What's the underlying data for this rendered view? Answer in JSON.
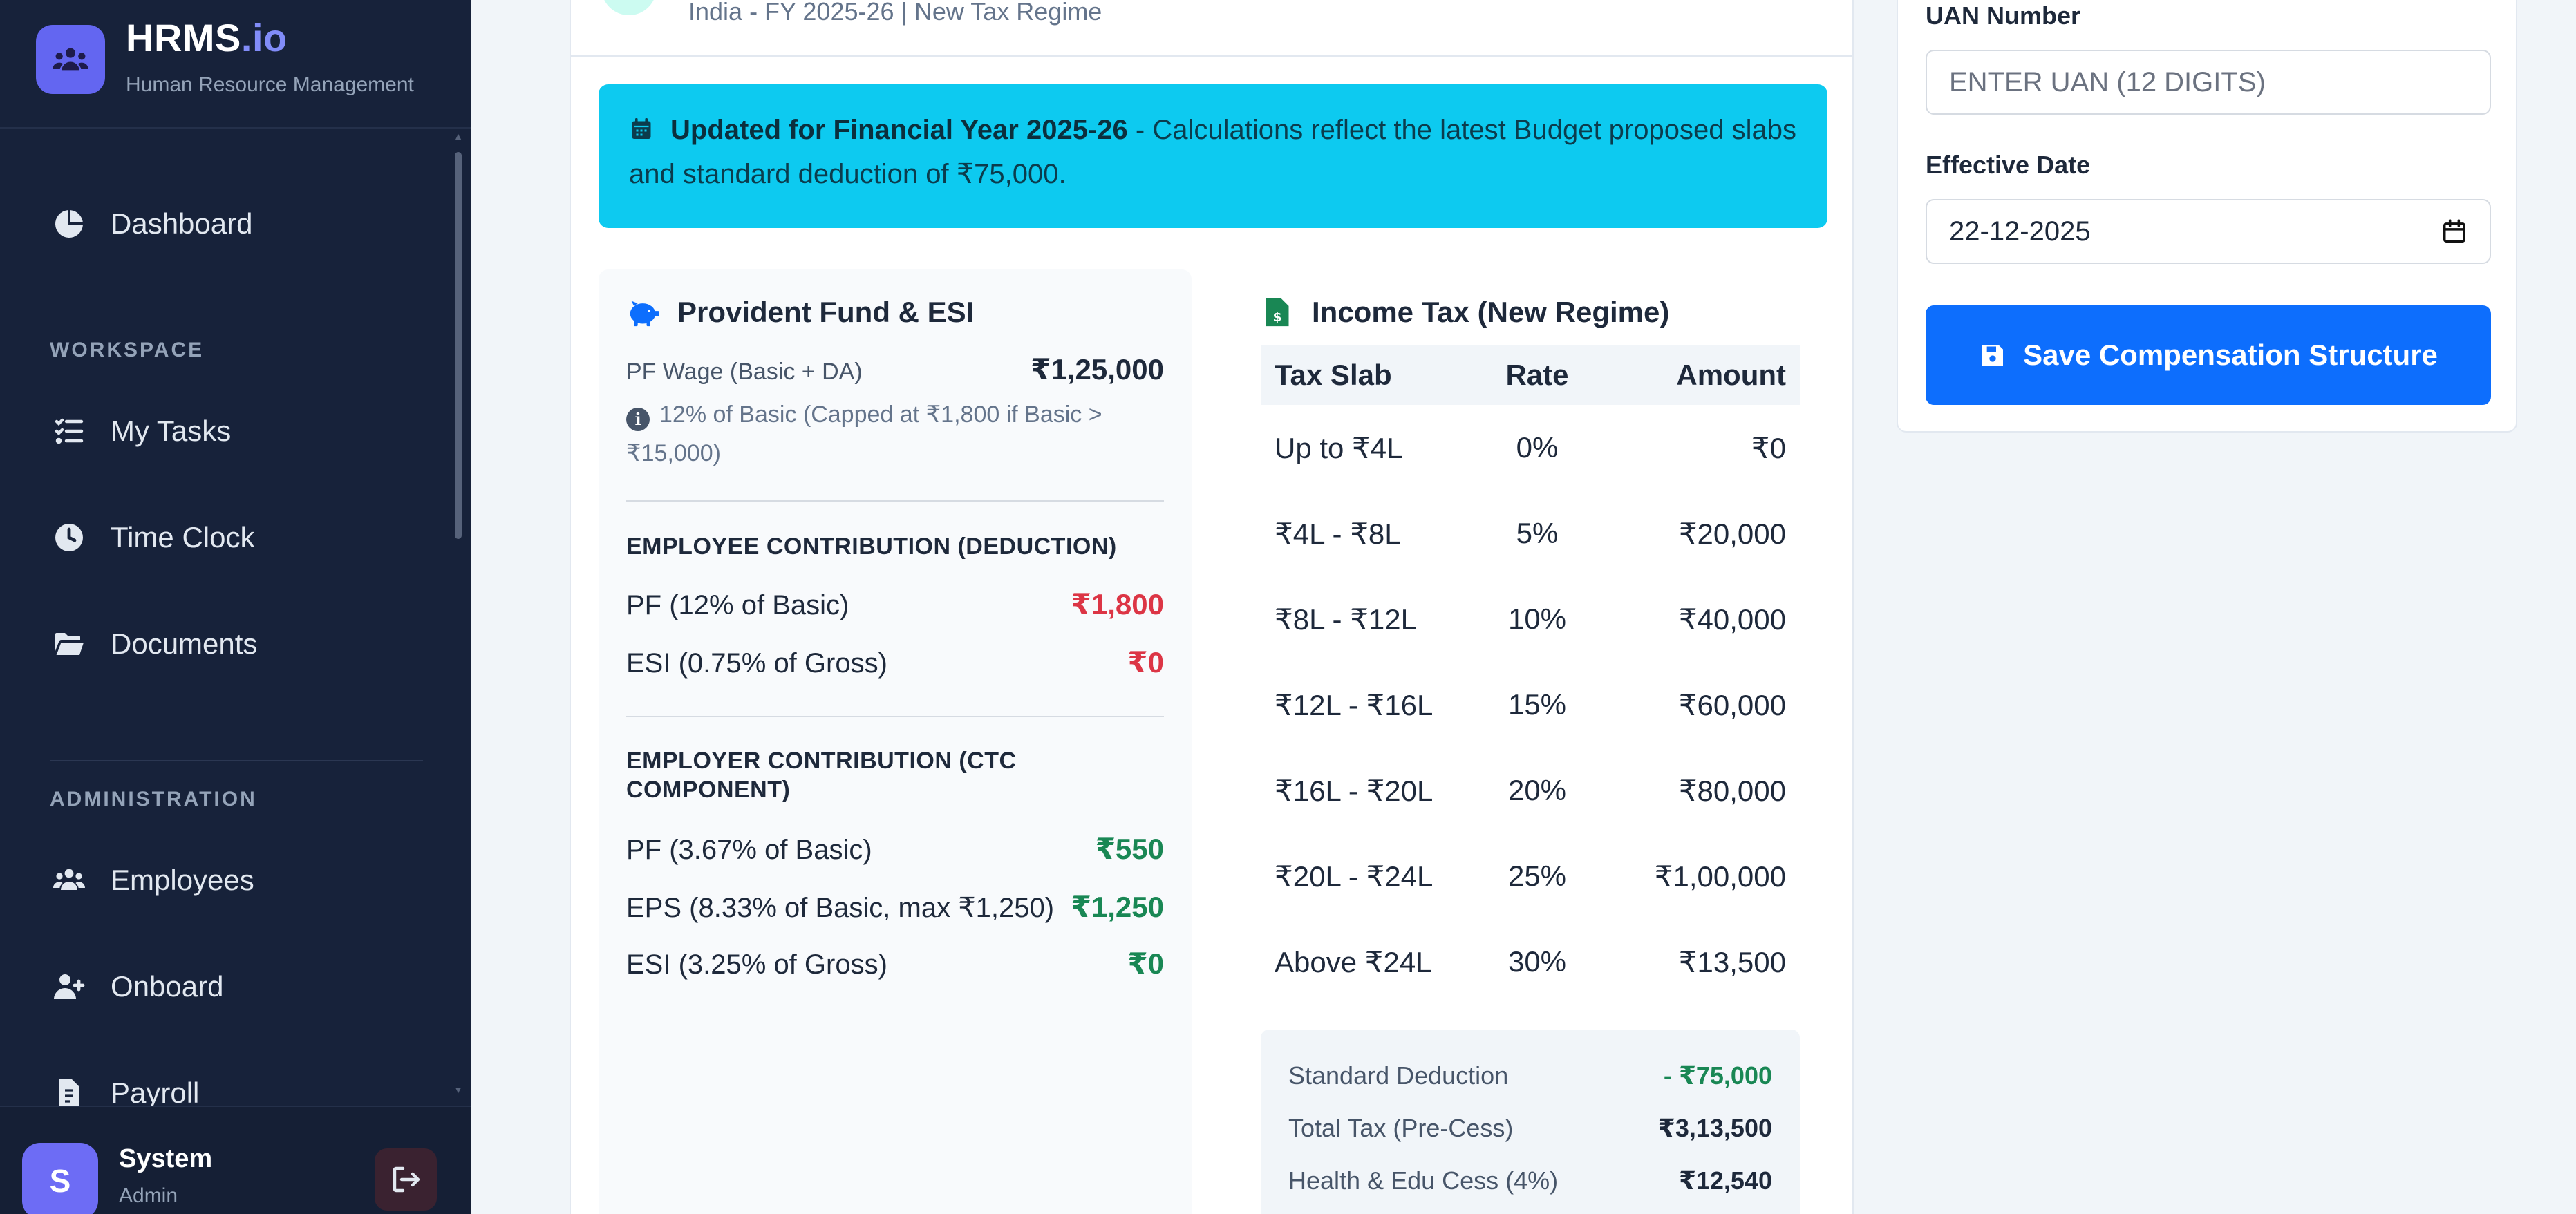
{
  "sidebar": {
    "brand_name": "HRMS",
    "brand_accent": ".io",
    "brand_sub": "Human Resource Management",
    "top_items": [
      {
        "label": "Dashboard",
        "icon": "pie-chart-icon"
      }
    ],
    "workspace_label": "WORKSPACE",
    "workspace_items": [
      {
        "label": "My Tasks",
        "icon": "task-list-icon"
      },
      {
        "label": "Time Clock",
        "icon": "clock-icon"
      },
      {
        "label": "Documents",
        "icon": "folder-open-icon"
      }
    ],
    "admin_label": "ADMINISTRATION",
    "admin_items": [
      {
        "label": "Employees",
        "icon": "users-icon"
      },
      {
        "label": "Onboard",
        "icon": "user-plus-icon"
      },
      {
        "label": "Payroll",
        "icon": "invoice-icon"
      }
    ],
    "user": {
      "initial": "S",
      "name": "System",
      "role": "Admin"
    }
  },
  "main": {
    "subtitle": "India - FY 2025-26 | New Tax Regime",
    "alert": {
      "bold": "Updated for Financial Year 2025-26",
      "text": " - Calculations reflect the latest Budget proposed slabs and standard deduction of ₹75,000."
    },
    "pf": {
      "title": "Provident Fund & ESI",
      "wage_label": "PF Wage (Basic + DA)",
      "wage_value": "₹1,25,000",
      "note": "12% of Basic (Capped at ₹1,800 if Basic > ₹15,000)",
      "employee_head": "EMPLOYEE CONTRIBUTION (DEDUCTION)",
      "employee_rows": [
        {
          "label": "PF (12% of Basic)",
          "value": "₹1,800"
        },
        {
          "label": "ESI (0.75% of Gross)",
          "value": "₹0"
        }
      ],
      "employer_head": "EMPLOYER CONTRIBUTION (CTC COMPONENT)",
      "employer_rows": [
        {
          "label": "PF (3.67% of Basic)",
          "value": "₹550"
        },
        {
          "label": "EPS (8.33% of Basic, max ₹1,250)",
          "value": "₹1,250"
        },
        {
          "label": "ESI (3.25% of Gross)",
          "value": "₹0"
        }
      ]
    },
    "tax": {
      "title": "Income Tax (New Regime)",
      "headers": [
        "Tax Slab",
        "Rate",
        "Amount"
      ],
      "rows": [
        [
          "Up to ₹4L",
          "0%",
          "₹0"
        ],
        [
          "₹4L - ₹8L",
          "5%",
          "₹20,000"
        ],
        [
          "₹8L - ₹12L",
          "10%",
          "₹40,000"
        ],
        [
          "₹12L - ₹16L",
          "15%",
          "₹60,000"
        ],
        [
          "₹16L - ₹20L",
          "20%",
          "₹80,000"
        ],
        [
          "₹20L - ₹24L",
          "25%",
          "₹1,00,000"
        ],
        [
          "Above ₹24L",
          "30%",
          "₹13,500"
        ]
      ],
      "summary": [
        {
          "label": "Standard Deduction",
          "value": "- ₹75,000"
        },
        {
          "label": "Total Tax (Pre-Cess)",
          "value": "₹3,13,500"
        },
        {
          "label": "Health & Edu Cess (4%)",
          "value": "₹12,540"
        }
      ]
    }
  },
  "side": {
    "uan_label": "UAN Number",
    "uan_placeholder": "ENTER UAN (12 DIGITS)",
    "date_label": "Effective Date",
    "date_value": "22-12-2025",
    "save_label": "Save Compensation Structure"
  }
}
